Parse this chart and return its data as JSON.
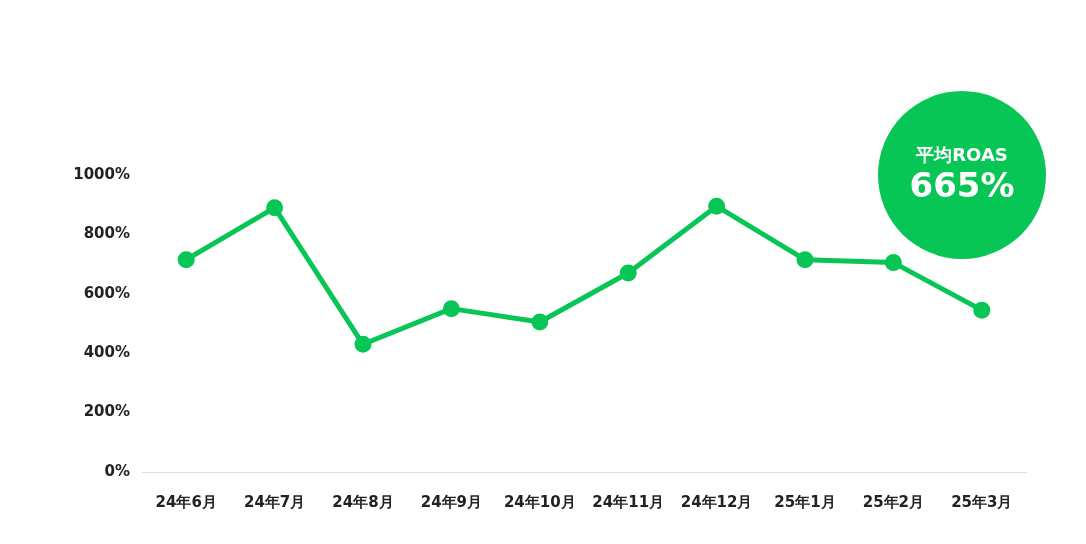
{
  "chart_data": {
    "type": "line",
    "categories": [
      "24年6月",
      "24年7月",
      "24年8月",
      "24年9月",
      "24年10月",
      "24年11月",
      "24年12月",
      "25年1月",
      "25年2月",
      "25年3月"
    ],
    "values": [
      715,
      890,
      430,
      550,
      505,
      670,
      895,
      715,
      705,
      545
    ],
    "color": "#08c655",
    "ylim": [
      0,
      1000
    ],
    "yticks": [
      {
        "value": 0,
        "label": "0%"
      },
      {
        "value": 200,
        "label": "200%"
      },
      {
        "value": 400,
        "label": "400%"
      },
      {
        "value": 600,
        "label": "600%"
      },
      {
        "value": 800,
        "label": "800%"
      },
      {
        "value": 1000,
        "label": "1000%"
      }
    ],
    "grid": false,
    "legend": false,
    "marker": "circle",
    "line_style": "solid",
    "annotations": [
      "平均ROAS",
      "665%"
    ]
  }
}
